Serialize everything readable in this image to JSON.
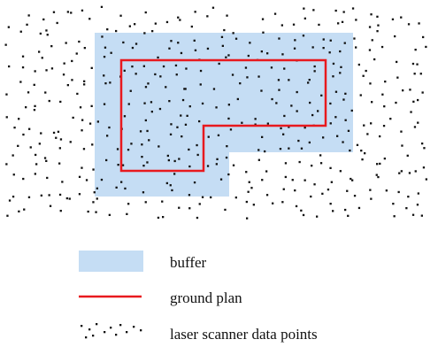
{
  "legend": {
    "items": [
      {
        "key": "buffer",
        "label": "buffer"
      },
      {
        "key": "ground_plan",
        "label": "ground plan"
      },
      {
        "key": "points",
        "label": "laser scanner data points"
      }
    ]
  },
  "colors": {
    "buffer": "#c5ddf4",
    "ground_plan": "#e8191e",
    "points": "#111111"
  },
  "random_seed": 17
}
